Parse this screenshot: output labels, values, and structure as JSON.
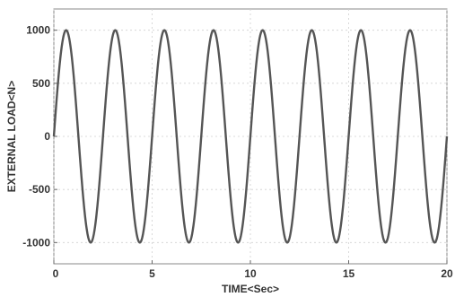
{
  "chart_data": {
    "type": "line",
    "title": "",
    "xlabel": "TIME<Sec>",
    "ylabel": "EXTERNAL LOAD<N>",
    "xlim": [
      0,
      20
    ],
    "ylim": [
      -1200,
      1200
    ],
    "xticks": [
      0,
      5,
      10,
      15,
      20
    ],
    "yticks": [
      -1000,
      -500,
      0,
      500,
      1000
    ],
    "grid": true,
    "legend": "none",
    "series": [
      {
        "function": "sine",
        "amplitude": 1000,
        "period_sec": 2.5,
        "x_start": 0,
        "x_end": 20,
        "color": "#555555"
      }
    ]
  },
  "xtick_labels": [
    "0",
    "5",
    "10",
    "15",
    "20"
  ],
  "ytick_labels": [
    "-1000",
    "-500",
    "0",
    "500",
    "1000"
  ]
}
